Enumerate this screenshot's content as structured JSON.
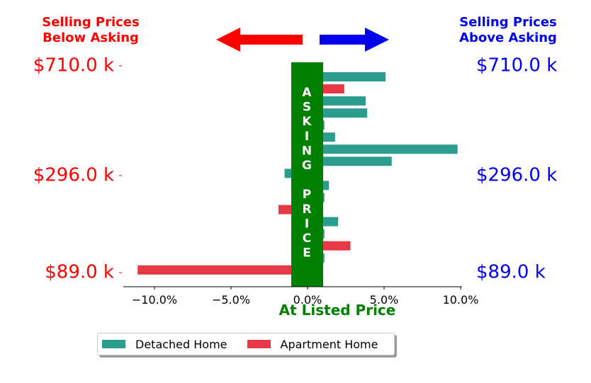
{
  "headings": {
    "below": [
      "Selling Prices",
      "Below Asking"
    ],
    "above": [
      "Selling Prices",
      "Above Asking"
    ]
  },
  "colors": {
    "detached": "#2a9d8f",
    "apartment": "#e63946",
    "below": "#ff0000",
    "above": "#0000ee",
    "asking": "#008000"
  },
  "chart_data": {
    "type": "bar",
    "orientation": "horizontal",
    "xlabel": "At Listed Price",
    "xlim": [
      -0.12,
      0.1
    ],
    "xticks": [
      -0.1,
      -0.05,
      0.0,
      0.05,
      0.1
    ],
    "xtick_labels": [
      "−10.0%",
      "−5.0%",
      "0.0%",
      "5.0%",
      "10.0%"
    ],
    "left_tick_labels": [
      "$710.0 k",
      "$296.0 k",
      "$89.0 k"
    ],
    "right_tick_labels": [
      "$710.0 k",
      "$296.0 k",
      "$89.0 k"
    ],
    "center_label": [
      "A",
      "S",
      "K",
      "I",
      "N",
      "G",
      "",
      "P",
      "R",
      "I",
      "C",
      "E"
    ],
    "legend": [
      "Detached Home",
      "Apartment Home"
    ],
    "bars": [
      {
        "type": "Detached Home",
        "value": 0.051
      },
      {
        "type": "Apartment Home",
        "value": 0.024
      },
      {
        "type": "Detached Home",
        "value": 0.038
      },
      {
        "type": "Detached Home",
        "value": 0.039
      },
      {
        "type": "Detached Home",
        "value": 0.011
      },
      {
        "type": "Detached Home",
        "value": 0.018
      },
      {
        "type": "Detached Home",
        "value": 0.098
      },
      {
        "type": "Detached Home",
        "value": 0.055
      },
      {
        "type": "Detached Home",
        "value": -0.015
      },
      {
        "type": "Detached Home",
        "value": 0.014
      },
      {
        "type": "Detached Home",
        "value": 0.011
      },
      {
        "type": "Apartment Home",
        "value": -0.019
      },
      {
        "type": "Detached Home",
        "value": 0.02
      },
      {
        "type": "Detached Home",
        "value": 0.011
      },
      {
        "type": "Apartment Home",
        "value": 0.028
      },
      {
        "type": "Detached Home",
        "value": 0.011
      },
      {
        "type": "Apartment Home",
        "value": -0.111
      }
    ]
  }
}
